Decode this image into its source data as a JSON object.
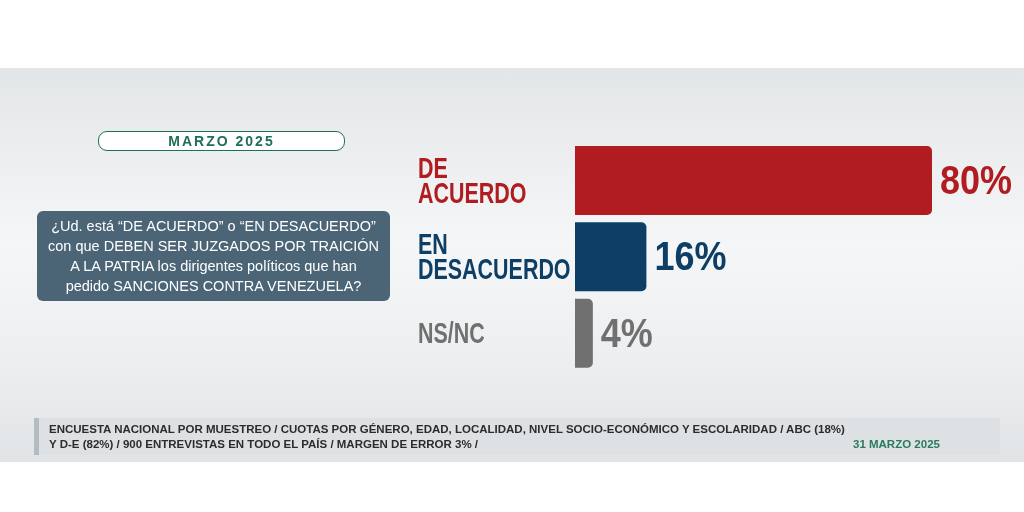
{
  "chart_data": {
    "type": "bar",
    "orientation": "horizontal",
    "title": "¿Ud. está “DE ACUERDO” o “EN DESACUERDO” con que DEBEN SER JUZGADOS POR TRAICIÓN A LA PATRIA los dirigentes políticos que han pedido SANCIONES CONTRA VENEZUELA?",
    "subtitle": "MARZO 2025",
    "categories": [
      "DE ACUERDO",
      "EN DESACUERDO",
      "NS/NC"
    ],
    "values": [
      80,
      16,
      4
    ],
    "colors": [
      "#b01c20",
      "#0d3f66",
      "#707070"
    ],
    "value_labels": [
      "80%",
      "16%",
      "4%"
    ],
    "tick_labels": "y",
    "annotations": [
      "ENCUESTA NACIONAL POR MUESTREO / CUOTAS POR GÉNERO, EDAD, LOCALIDAD, NIVEL SOCIO-ECONÓMICO Y ESCOLARIDAD / ABC (18%) Y D-E (82%) / 900 ENTREVISTAS EN TODO EL PAÍS / MARGEN DE ERROR 3% /",
      "31 MARZO 2025"
    ]
  }
}
